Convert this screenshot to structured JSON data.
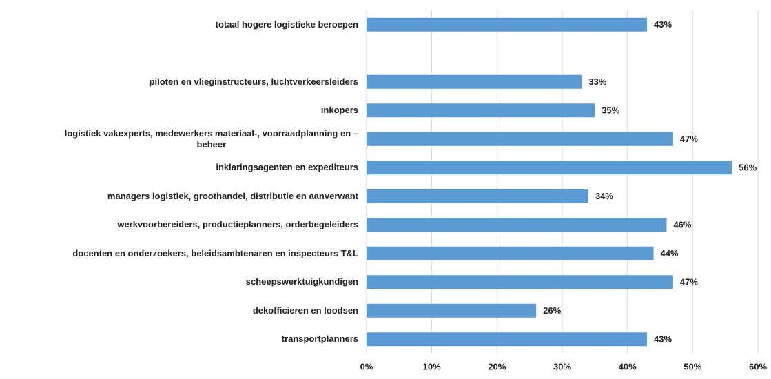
{
  "chart_data": {
    "type": "bar",
    "orientation": "horizontal",
    "categories": [
      "totaal hogere logistieke beroepen",
      null,
      "piloten en vlieginstructeurs, luchtverkeersleiders",
      "inkopers",
      "logistiek vakexperts, medewerkers materiaal-, voorraadplanning en –\nbeheer",
      "inklaringsagenten en expediteurs",
      "managers logistiek, groothandel, distributie en aanverwant",
      "werkvoorbereiders, productieplanners, orderbegeleiders",
      "docenten en onderzoekers, beleidsambtenaren en inspecteurs T&L",
      "scheepswerktuigkundigen",
      "dekofficieren en loodsen",
      "transportplanners"
    ],
    "values": [
      43,
      null,
      33,
      35,
      47,
      56,
      34,
      46,
      44,
      47,
      26,
      43
    ],
    "value_labels": [
      "43%",
      null,
      "33%",
      "35%",
      "47%",
      "56%",
      "34%",
      "46%",
      "44%",
      "47%",
      "26%",
      "43%"
    ],
    "color": "#5b9bd5",
    "xlim": [
      0,
      60
    ],
    "xticks": [
      {
        "value": 0,
        "label": "0%"
      },
      {
        "value": 10,
        "label": "10%"
      },
      {
        "value": 20,
        "label": "20%"
      },
      {
        "value": 30,
        "label": "30%"
      },
      {
        "value": 40,
        "label": "40%"
      },
      {
        "value": 50,
        "label": "50%"
      },
      {
        "value": 60,
        "label": "60%"
      }
    ],
    "grid": true
  }
}
